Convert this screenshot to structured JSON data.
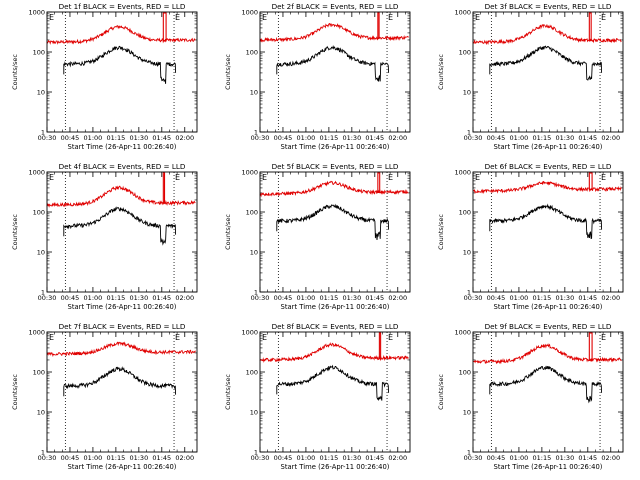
{
  "chart_data": [
    {
      "title": "Det 1f BLACK = Events, RED = LLD",
      "type": "line",
      "xlabel": "Start Time (26-Apr-11 00:26:40)",
      "ylabel": "Counts/sec",
      "yscale": "log",
      "ylim": [
        1,
        1000
      ],
      "xlim": [
        "00:30",
        "02:08"
      ],
      "black_level": 50,
      "black_peak": 130,
      "red_level": 175,
      "red_peak": 400,
      "red_spikes": [
        {
          "time": "01:46",
          "value": 1000,
          "width_min": 1.8
        }
      ],
      "black_dips": [
        "01:46"
      ],
      "annotation": "E"
    },
    {
      "title": "Det 2f BLACK = Events, RED = LLD",
      "type": "line",
      "xlabel": "Start Time (26-Apr-11 00:26:40)",
      "ylabel": "Counts/sec",
      "yscale": "log",
      "ylim": [
        1,
        1000
      ],
      "xlim": [
        "00:30",
        "02:08"
      ],
      "black_level": 50,
      "black_peak": 130,
      "red_level": 200,
      "red_peak": 450,
      "red_spikes": [
        {
          "time": "01:47",
          "value": 1000,
          "width_min": 0.8
        }
      ],
      "black_dips": [
        "01:47"
      ],
      "annotation": "E"
    },
    {
      "title": "Det 3f BLACK = Events, RED = LLD",
      "type": "line",
      "xlabel": "Start Time (26-Apr-11 00:26:40)",
      "ylabel": "Counts/sec",
      "yscale": "log",
      "ylim": [
        1,
        1000
      ],
      "xlim": [
        "00:30",
        "02:08"
      ],
      "black_level": 50,
      "black_peak": 130,
      "red_level": 175,
      "red_peak": 420,
      "red_spikes": [
        {
          "time": "01:46",
          "value": 1000,
          "width_min": 1.2
        }
      ],
      "black_dips": [
        "01:46"
      ],
      "annotation": "E"
    },
    {
      "title": "Det 4f BLACK = Events, RED = LLD",
      "type": "line",
      "xlabel": "Start Time (26-Apr-11 00:26:40)",
      "ylabel": "Counts/sec",
      "yscale": "log",
      "ylim": [
        1,
        1000
      ],
      "xlim": [
        "00:30",
        "02:08"
      ],
      "black_level": 45,
      "black_peak": 120,
      "red_level": 150,
      "red_peak": 380,
      "red_spikes": [
        {
          "time": "01:46",
          "value": 1000,
          "width_min": 0.7
        }
      ],
      "black_dips": [
        "01:46"
      ],
      "annotation": "E"
    },
    {
      "title": "Det 5f BLACK = Events, RED = LLD",
      "type": "line",
      "xlabel": "Start Time (26-Apr-11 00:26:40)",
      "ylabel": "Counts/sec",
      "yscale": "log",
      "ylim": [
        1,
        1000
      ],
      "xlim": [
        "00:30",
        "02:08"
      ],
      "black_level": 60,
      "black_peak": 140,
      "red_level": 280,
      "red_peak": 500,
      "red_spikes": [
        {
          "time": "01:47",
          "value": 1000,
          "width_min": 1.2
        }
      ],
      "black_dips": [
        "01:47"
      ],
      "annotation": "E"
    },
    {
      "title": "Det 6f BLACK = Events, RED = LLD",
      "type": "line",
      "xlabel": "Start Time (26-Apr-11 00:26:40)",
      "ylabel": "Counts/sec",
      "yscale": "log",
      "ylim": [
        1,
        1000
      ],
      "xlim": [
        "00:30",
        "02:08"
      ],
      "black_level": 60,
      "black_peak": 140,
      "red_level": 330,
      "red_peak": 500,
      "red_spikes": [
        {
          "time": "01:46",
          "value": 1000,
          "width_min": 1.8
        }
      ],
      "black_dips": [
        "01:46"
      ],
      "annotation": "E"
    },
    {
      "title": "Det 7f BLACK = Events, RED = LLD",
      "type": "line",
      "xlabel": "Start Time (26-Apr-11 00:26:40)",
      "ylabel": "Counts/sec",
      "yscale": "log",
      "ylim": [
        1,
        1000
      ],
      "xlim": [
        "00:30",
        "02:08"
      ],
      "black_level": 45,
      "black_peak": 120,
      "red_level": 280,
      "red_peak": 480,
      "red_spikes": [],
      "black_dips": [],
      "annotation": "E"
    },
    {
      "title": "Det 8f BLACK = Events, RED = LLD",
      "type": "line",
      "xlabel": "Start Time (26-Apr-11 00:26:40)",
      "ylabel": "Counts/sec",
      "yscale": "log",
      "ylim": [
        1,
        1000
      ],
      "xlim": [
        "00:30",
        "02:08"
      ],
      "black_level": 50,
      "black_peak": 130,
      "red_level": 200,
      "red_peak": 450,
      "red_spikes": [
        {
          "time": "01:48",
          "value": 1000,
          "width_min": 0.8
        }
      ],
      "black_dips": [
        "01:48"
      ],
      "annotation": "E"
    },
    {
      "title": "Det 9f BLACK = Events, RED = LLD",
      "type": "line",
      "xlabel": "Start Time (26-Apr-11 00:26:40)",
      "ylabel": "Counts/sec",
      "yscale": "log",
      "ylim": [
        1,
        1000
      ],
      "xlim": [
        "00:30",
        "02:08"
      ],
      "black_level": 50,
      "black_peak": 130,
      "red_level": 180,
      "red_peak": 430,
      "red_spikes": [
        {
          "time": "01:46",
          "value": 1000,
          "width_min": 1.8
        }
      ],
      "black_dips": [
        "01:46"
      ],
      "annotation": "E"
    }
  ],
  "shared": {
    "xticks": [
      "00:30",
      "00:45",
      "01:00",
      "01:15",
      "01:30",
      "01:45",
      "02:00"
    ],
    "yticks": [
      1,
      10,
      100,
      1000
    ],
    "ytick_labels": [
      "1",
      "10",
      "100",
      "1000"
    ],
    "black_start": "00:41",
    "black_end": "01:54",
    "dotted_lines": [
      "00:42",
      "01:53"
    ],
    "colors": {
      "events": "#000000",
      "lld": "#e00000",
      "axis": "#000000"
    }
  }
}
